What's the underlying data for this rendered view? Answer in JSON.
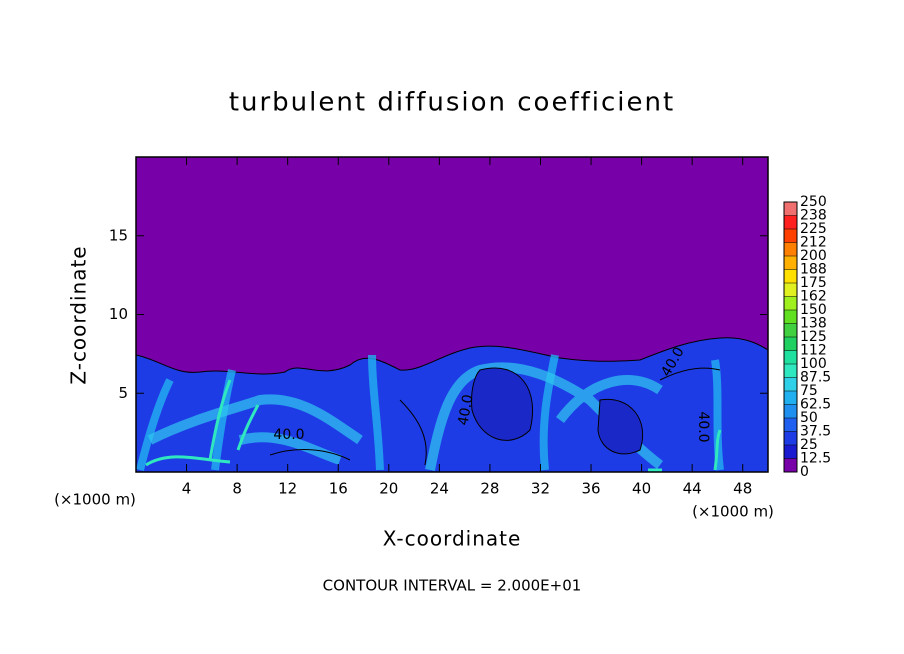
{
  "chart_data": {
    "type": "contour",
    "title": "turbulent diffusion coefficient",
    "x_label": "X-coordinate",
    "y_label": "Z-coordinate",
    "x_unit_label": "(×1000 m)",
    "y_unit_label": "(×1000 m)",
    "contour_interval_label": "CONTOUR INTERVAL = 2.000E+01",
    "xlim": [
      0,
      50
    ],
    "ylim": [
      0,
      20
    ],
    "xticks": [
      4,
      8,
      12,
      16,
      20,
      24,
      28,
      32,
      36,
      40,
      44,
      48
    ],
    "yticks": [
      5,
      10,
      15
    ],
    "background_color": "#7800a8",
    "colorbar": {
      "levels": [
        0,
        12.5,
        25,
        37.5,
        50,
        62.5,
        75,
        87.5,
        100,
        112,
        125,
        138,
        150,
        162,
        175,
        188,
        200,
        212,
        225,
        238,
        250
      ],
      "colors": [
        "#7800a8",
        "#1a1ad0",
        "#1e3ce6",
        "#2060f0",
        "#2090f0",
        "#20b0f0",
        "#30d0e8",
        "#30e8c0",
        "#20e0a0",
        "#20d060",
        "#40d040",
        "#60e020",
        "#a0f020",
        "#e0f020",
        "#ffe000",
        "#ffb000",
        "#ff8000",
        "#ff4000",
        "#ff2020",
        "#f07070"
      ]
    },
    "annotations": [
      "40.0",
      "40.0",
      "40.0",
      "40.0"
    ]
  }
}
